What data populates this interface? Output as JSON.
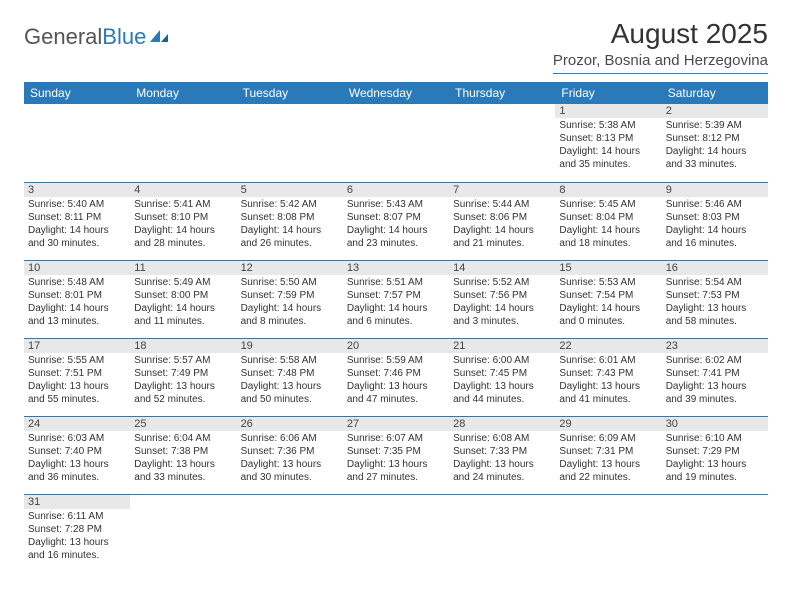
{
  "logo": {
    "general": "General",
    "blue": "Blue"
  },
  "title": "August 2025",
  "location": "Prozor, Bosnia and Herzegovina",
  "colors": {
    "accent": "#2a7ab9",
    "header_bg": "#2a7ab9",
    "header_text": "#ffffff",
    "daynum_bg": "#e8e8e8",
    "text": "#333333"
  },
  "weekdays": [
    "Sunday",
    "Monday",
    "Tuesday",
    "Wednesday",
    "Thursday",
    "Friday",
    "Saturday"
  ],
  "weeks": [
    [
      null,
      null,
      null,
      null,
      null,
      {
        "n": "1",
        "sunrise": "5:38 AM",
        "sunset": "8:13 PM",
        "daylight": "14 hours and 35 minutes."
      },
      {
        "n": "2",
        "sunrise": "5:39 AM",
        "sunset": "8:12 PM",
        "daylight": "14 hours and 33 minutes."
      }
    ],
    [
      {
        "n": "3",
        "sunrise": "5:40 AM",
        "sunset": "8:11 PM",
        "daylight": "14 hours and 30 minutes."
      },
      {
        "n": "4",
        "sunrise": "5:41 AM",
        "sunset": "8:10 PM",
        "daylight": "14 hours and 28 minutes."
      },
      {
        "n": "5",
        "sunrise": "5:42 AM",
        "sunset": "8:08 PM",
        "daylight": "14 hours and 26 minutes."
      },
      {
        "n": "6",
        "sunrise": "5:43 AM",
        "sunset": "8:07 PM",
        "daylight": "14 hours and 23 minutes."
      },
      {
        "n": "7",
        "sunrise": "5:44 AM",
        "sunset": "8:06 PM",
        "daylight": "14 hours and 21 minutes."
      },
      {
        "n": "8",
        "sunrise": "5:45 AM",
        "sunset": "8:04 PM",
        "daylight": "14 hours and 18 minutes."
      },
      {
        "n": "9",
        "sunrise": "5:46 AM",
        "sunset": "8:03 PM",
        "daylight": "14 hours and 16 minutes."
      }
    ],
    [
      {
        "n": "10",
        "sunrise": "5:48 AM",
        "sunset": "8:01 PM",
        "daylight": "14 hours and 13 minutes."
      },
      {
        "n": "11",
        "sunrise": "5:49 AM",
        "sunset": "8:00 PM",
        "daylight": "14 hours and 11 minutes."
      },
      {
        "n": "12",
        "sunrise": "5:50 AM",
        "sunset": "7:59 PM",
        "daylight": "14 hours and 8 minutes."
      },
      {
        "n": "13",
        "sunrise": "5:51 AM",
        "sunset": "7:57 PM",
        "daylight": "14 hours and 6 minutes."
      },
      {
        "n": "14",
        "sunrise": "5:52 AM",
        "sunset": "7:56 PM",
        "daylight": "14 hours and 3 minutes."
      },
      {
        "n": "15",
        "sunrise": "5:53 AM",
        "sunset": "7:54 PM",
        "daylight": "14 hours and 0 minutes."
      },
      {
        "n": "16",
        "sunrise": "5:54 AM",
        "sunset": "7:53 PM",
        "daylight": "13 hours and 58 minutes."
      }
    ],
    [
      {
        "n": "17",
        "sunrise": "5:55 AM",
        "sunset": "7:51 PM",
        "daylight": "13 hours and 55 minutes."
      },
      {
        "n": "18",
        "sunrise": "5:57 AM",
        "sunset": "7:49 PM",
        "daylight": "13 hours and 52 minutes."
      },
      {
        "n": "19",
        "sunrise": "5:58 AM",
        "sunset": "7:48 PM",
        "daylight": "13 hours and 50 minutes."
      },
      {
        "n": "20",
        "sunrise": "5:59 AM",
        "sunset": "7:46 PM",
        "daylight": "13 hours and 47 minutes."
      },
      {
        "n": "21",
        "sunrise": "6:00 AM",
        "sunset": "7:45 PM",
        "daylight": "13 hours and 44 minutes."
      },
      {
        "n": "22",
        "sunrise": "6:01 AM",
        "sunset": "7:43 PM",
        "daylight": "13 hours and 41 minutes."
      },
      {
        "n": "23",
        "sunrise": "6:02 AM",
        "sunset": "7:41 PM",
        "daylight": "13 hours and 39 minutes."
      }
    ],
    [
      {
        "n": "24",
        "sunrise": "6:03 AM",
        "sunset": "7:40 PM",
        "daylight": "13 hours and 36 minutes."
      },
      {
        "n": "25",
        "sunrise": "6:04 AM",
        "sunset": "7:38 PM",
        "daylight": "13 hours and 33 minutes."
      },
      {
        "n": "26",
        "sunrise": "6:06 AM",
        "sunset": "7:36 PM",
        "daylight": "13 hours and 30 minutes."
      },
      {
        "n": "27",
        "sunrise": "6:07 AM",
        "sunset": "7:35 PM",
        "daylight": "13 hours and 27 minutes."
      },
      {
        "n": "28",
        "sunrise": "6:08 AM",
        "sunset": "7:33 PM",
        "daylight": "13 hours and 24 minutes."
      },
      {
        "n": "29",
        "sunrise": "6:09 AM",
        "sunset": "7:31 PM",
        "daylight": "13 hours and 22 minutes."
      },
      {
        "n": "30",
        "sunrise": "6:10 AM",
        "sunset": "7:29 PM",
        "daylight": "13 hours and 19 minutes."
      }
    ],
    [
      {
        "n": "31",
        "sunrise": "6:11 AM",
        "sunset": "7:28 PM",
        "daylight": "13 hours and 16 minutes."
      },
      null,
      null,
      null,
      null,
      null,
      null
    ]
  ],
  "labels": {
    "sunrise_prefix": "Sunrise: ",
    "sunset_prefix": "Sunset: ",
    "daylight_prefix": "Daylight: "
  }
}
